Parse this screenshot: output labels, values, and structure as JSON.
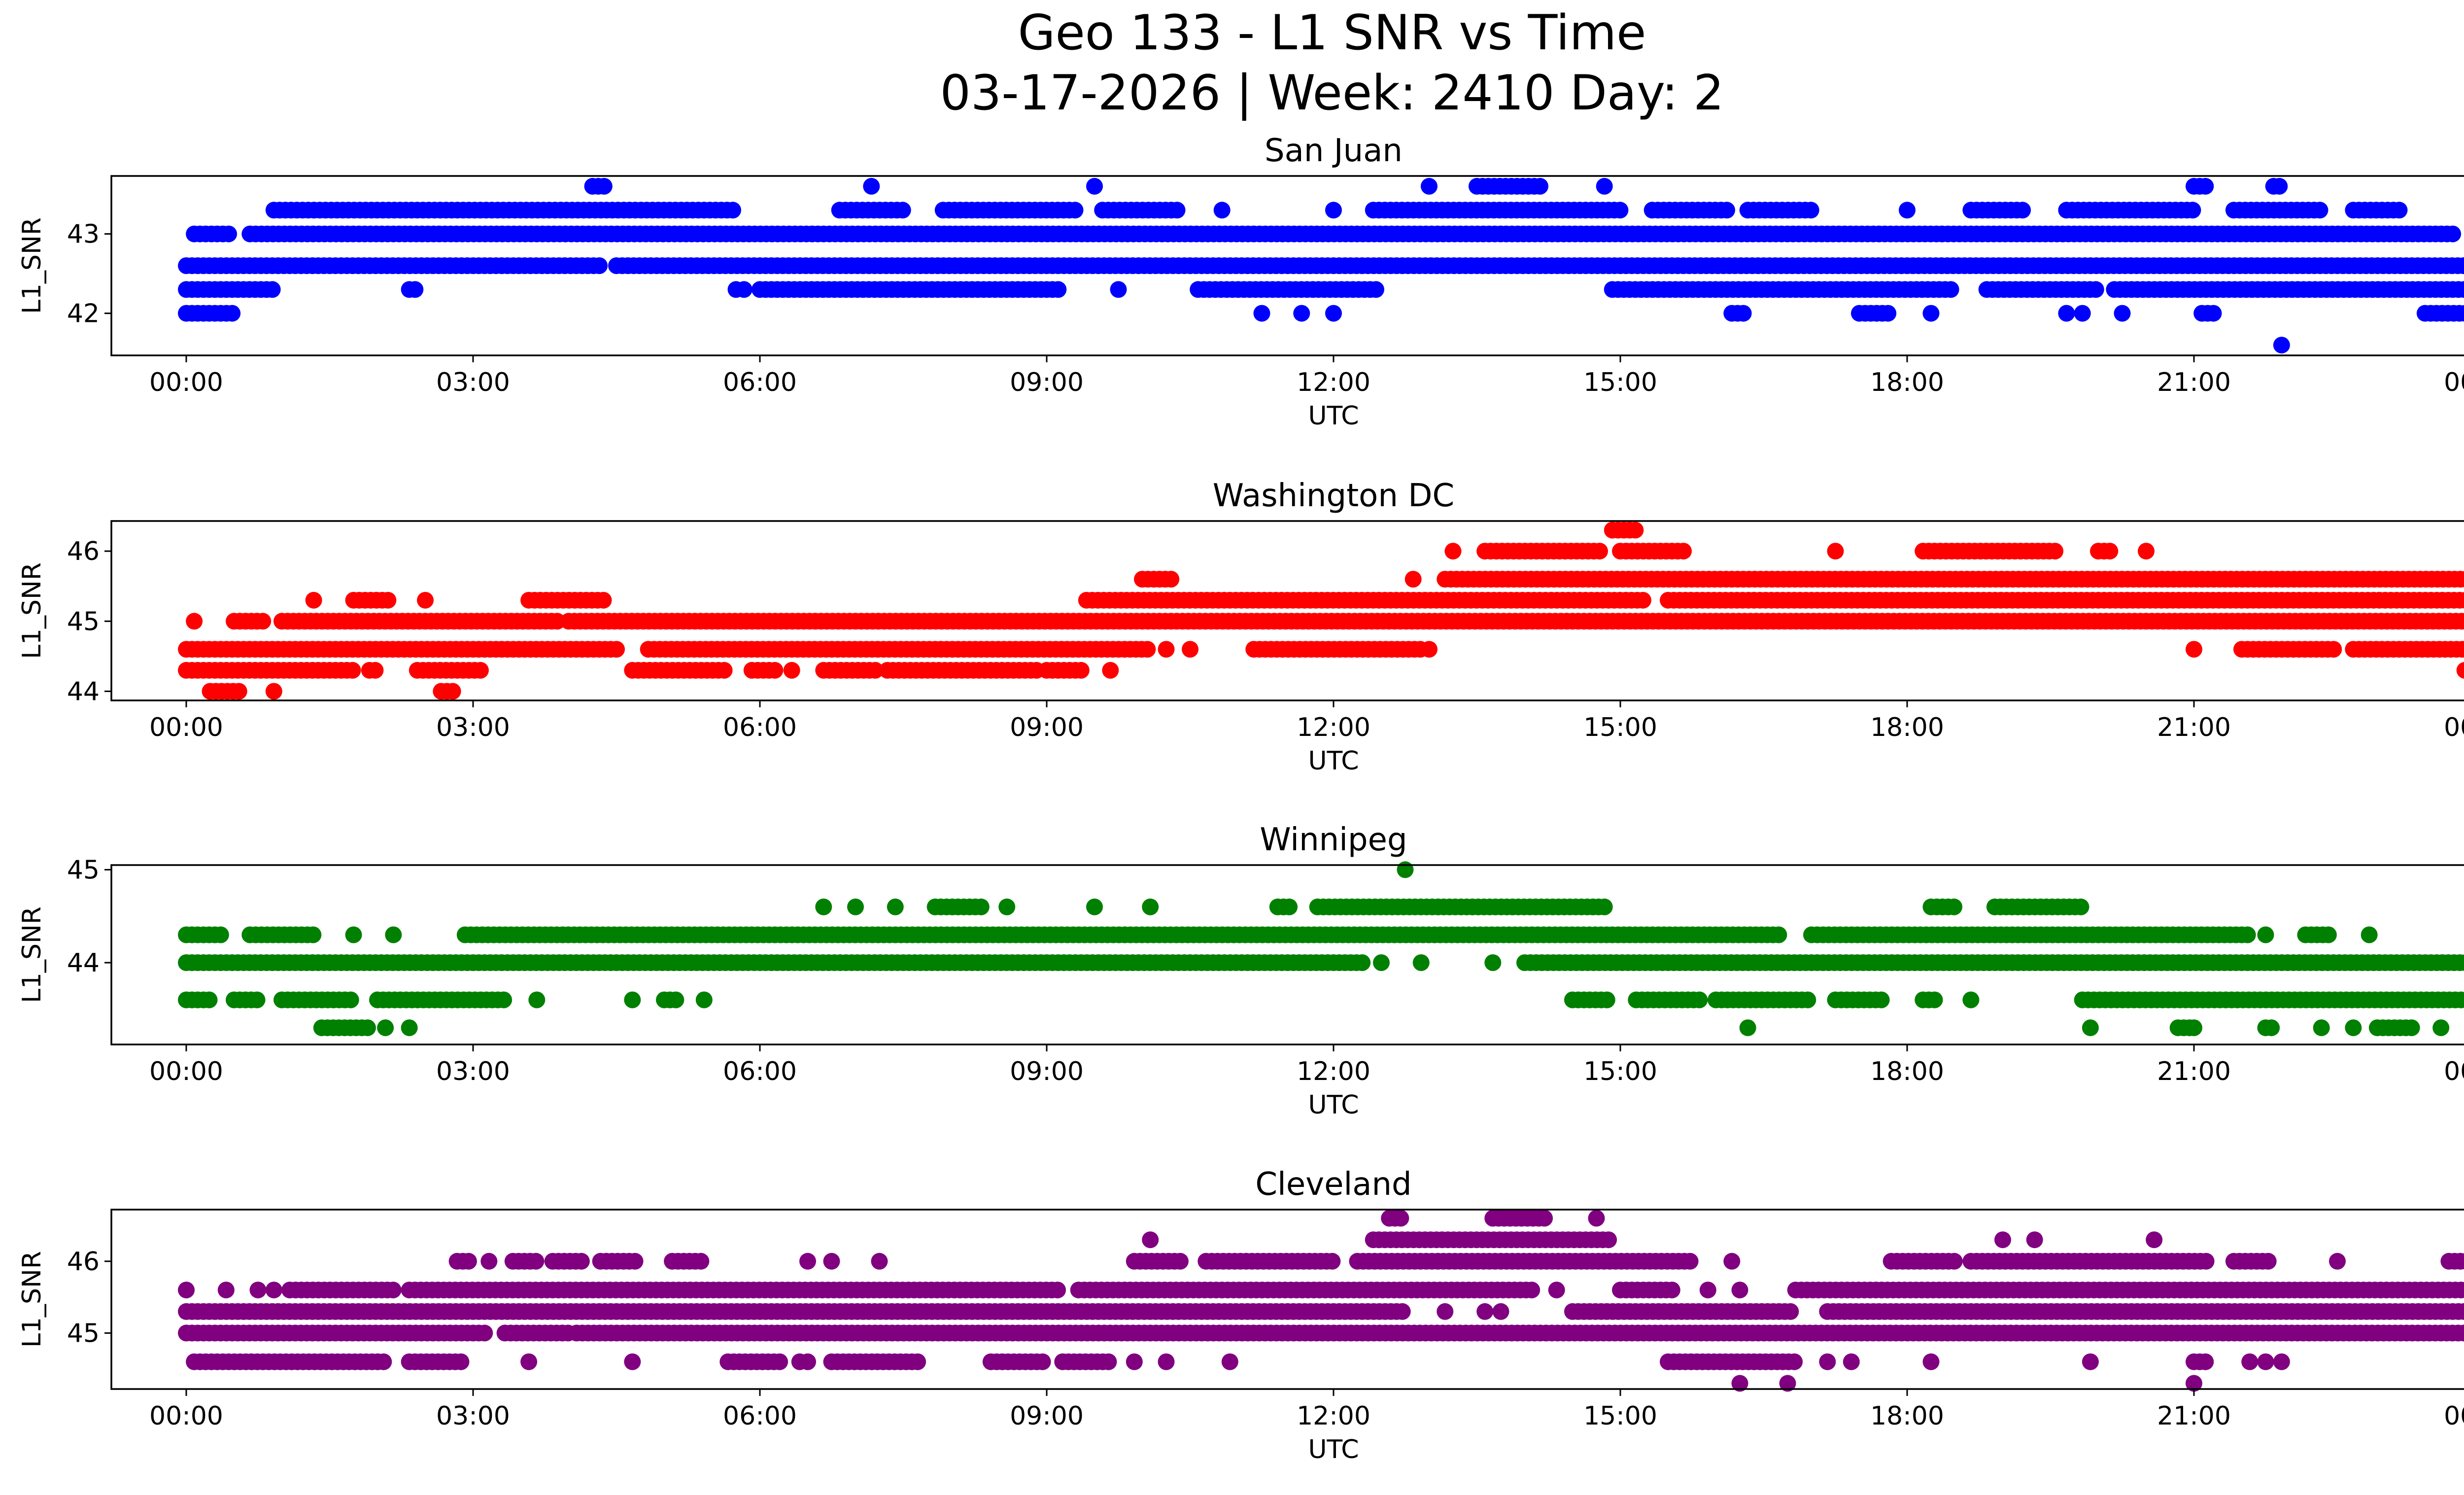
{
  "figure": {
    "title_line1": "Geo 133 - L1 SNR vs Time",
    "title_line2": "03-17-2026 | Week: 2410 Day: 2"
  },
  "chart_data": [
    {
      "type": "scatter",
      "title": "San Juan",
      "xlabel": "UTC",
      "ylabel": "L1_SNR",
      "x_unit": "hours UTC",
      "xlim": [
        "-0:47",
        "24:47"
      ],
      "xticks": [
        "00:00",
        "03:00",
        "06:00",
        "09:00",
        "12:00",
        "15:00",
        "18:00",
        "21:00",
        "00:00"
      ],
      "ylim": [
        41.47,
        43.73
      ],
      "yticks": [
        42,
        43
      ],
      "color": "#0000ff",
      "grid": false,
      "levels": [
        {
          "y": 42.0,
          "points": [
            "0:00-0:30",
            "11:15",
            "11:40",
            "12:00",
            "16:10-16:20",
            "17:30-17:50",
            "18:15",
            "19:40",
            "19:50",
            "20:15",
            "21:05-21:15",
            "23:25-24:00"
          ]
        },
        {
          "y": 42.3,
          "points": [
            "0:00-0:55",
            "2:20-2:25",
            "5:45",
            "5:50",
            "6:00-9:10",
            "9:45",
            "10:35-12:30",
            "14:55-18:30",
            "18:50-20:00",
            "20:10-24:00"
          ]
        },
        {
          "y": 42.6,
          "points": [
            "0:00-4:20",
            "4:30-24:00"
          ]
        },
        {
          "y": 43.0,
          "points": [
            "0:05-0:30",
            "0:40-23:45"
          ]
        },
        {
          "y": 43.3,
          "points": [
            "0:55-5:45",
            "6:50-7:30",
            "7:55-9:20",
            "9:35-10:25",
            "10:50",
            "12:00",
            "12:25-15:00",
            "15:20-16:10",
            "16:20-17:00",
            "18:00",
            "18:40-19:15",
            "19:40-21:00",
            "21:25-22:20",
            "22:40-23:10"
          ]
        },
        {
          "y": 43.6,
          "points": [
            "4:15-4:25",
            "7:10",
            "9:30",
            "13:00",
            "13:30-14:10",
            "14:50",
            "21:00-21:10",
            "21:50-21:55"
          ]
        },
        {
          "y": 41.6,
          "points": [
            "21:55"
          ]
        }
      ]
    },
    {
      "type": "scatter",
      "title": "Washington DC",
      "xlabel": "UTC",
      "ylabel": "L1_SNR",
      "x_unit": "hours UTC",
      "xlim": [
        "-0:47",
        "24:47"
      ],
      "xticks": [
        "00:00",
        "03:00",
        "06:00",
        "09:00",
        "12:00",
        "15:00",
        "18:00",
        "21:00",
        "00:00"
      ],
      "ylim": [
        43.87,
        46.43
      ],
      "yticks": [
        44,
        45,
        46
      ],
      "color": "#ff0000",
      "grid": false,
      "levels": [
        {
          "y": 44.0,
          "points": [
            "0:15-0:35",
            "0:55",
            "2:40-2:50"
          ]
        },
        {
          "y": 44.3,
          "points": [
            "0:00-1:45",
            "1:55-2:00",
            "2:25-3:05",
            "4:40-5:40",
            "5:55-6:10",
            "6:20",
            "6:40-7:15",
            "7:20-8:55",
            "9:00-9:25",
            "9:40",
            "23:50",
            "24:00"
          ]
        },
        {
          "y": 44.6,
          "points": [
            "0:00-4:30",
            "4:50-10:05",
            "10:15",
            "10:30",
            "11:10-12:55",
            "13:00",
            "21:00",
            "21:30-22:30",
            "22:40-24:00"
          ]
        },
        {
          "y": 45.0,
          "points": [
            "0:05",
            "0:30-0:50",
            "1:00-3:55",
            "4:00-24:00"
          ]
        },
        {
          "y": 45.3,
          "points": [
            "1:20",
            "1:45-2:10",
            "2:30",
            "3:35-4:25",
            "9:25-15:15",
            "15:30-24:00"
          ]
        },
        {
          "y": 45.6,
          "points": [
            "10:00-10:20",
            "12:50",
            "13:10-24:00"
          ]
        },
        {
          "y": 46.0,
          "points": [
            "13:15",
            "13:35-14:50",
            "15:00-15:40",
            "17:15",
            "18:10-19:35",
            "20:00-20:10",
            "20:30"
          ]
        },
        {
          "y": 46.3,
          "points": [
            "14:55-15:10"
          ]
        }
      ]
    },
    {
      "type": "scatter",
      "title": "Winnipeg",
      "xlabel": "UTC",
      "ylabel": "L1_SNR",
      "x_unit": "hours UTC",
      "xlim": [
        "-0:47",
        "24:47"
      ],
      "xticks": [
        "00:00",
        "03:00",
        "06:00",
        "09:00",
        "12:00",
        "15:00",
        "18:00",
        "21:00",
        "00:00"
      ],
      "ylim": [
        43.12,
        45.05
      ],
      "yticks": [
        44,
        45
      ],
      "color": "#008000",
      "grid": false,
      "levels": [
        {
          "y": 43.3,
          "points": [
            "1:25-1:55",
            "2:05",
            "2:20",
            "16:20",
            "19:55",
            "20:50-21:00",
            "21:00",
            "21:45-21:50",
            "22:20",
            "22:40",
            "22:55-23:20",
            "23:35",
            "24:00"
          ]
        },
        {
          "y": 43.6,
          "points": [
            "0:00-0:15",
            "0:30-0:45",
            "1:00-1:45",
            "2:00-3:20",
            "3:40",
            "4:40",
            "5:00-5:10",
            "5:25",
            "14:30-14:55",
            "15:10-15:50",
            "16:00-17:00",
            "17:15-17:45",
            "18:10-18:20",
            "18:40",
            "19:50-24:00"
          ]
        },
        {
          "y": 44.0,
          "points": [
            "0:00-12:20",
            "12:30",
            "12:55",
            "13:40",
            "14:00-24:00"
          ]
        },
        {
          "y": 44.3,
          "points": [
            "0:00-0:25",
            "0:40-1:20",
            "1:45",
            "2:10",
            "2:55-16:40",
            "17:00-21:35",
            "21:45",
            "22:10-22:25",
            "22:50"
          ]
        },
        {
          "y": 44.6,
          "points": [
            "6:40",
            "7:00",
            "7:25",
            "7:50-8:20",
            "8:35",
            "9:30",
            "10:05",
            "11:25-11:35",
            "11:50-14:50",
            "18:15-18:30",
            "18:55-19:50"
          ]
        },
        {
          "y": 45.0,
          "points": [
            "12:45"
          ]
        }
      ]
    },
    {
      "type": "scatter",
      "title": "Cleveland",
      "xlabel": "UTC",
      "ylabel": "L1_SNR",
      "x_unit": "hours UTC",
      "xlim": [
        "-0:47",
        "24:47"
      ],
      "xticks": [
        "00:00",
        "03:00",
        "06:00",
        "09:00",
        "12:00",
        "15:00",
        "18:00",
        "21:00",
        "00:00"
      ],
      "ylim": [
        44.22,
        46.72
      ],
      "yticks": [
        45,
        46
      ],
      "color": "#800080",
      "grid": false,
      "levels": [
        {
          "y": 44.3,
          "points": [
            "16:15",
            "16:45",
            "21:00"
          ]
        },
        {
          "y": 44.6,
          "points": [
            "0:05-2:05",
            "2:20-2:55",
            "3:35",
            "4:40",
            "5:40-6:15",
            "6:25",
            "6:30",
            "6:45-7:40",
            "8:25-9:00",
            "9:10-9:40",
            "9:55",
            "10:15",
            "10:55",
            "15:30-16:50",
            "17:10",
            "17:25",
            "18:15",
            "19:55",
            "21:00-21:10",
            "21:35",
            "21:45",
            "21:55"
          ]
        },
        {
          "y": 45.0,
          "points": [
            "0:00-3:10",
            "3:20-4:00",
            "4:05-24:00"
          ]
        },
        {
          "y": 45.3,
          "points": [
            "0:00-12:45",
            "13:10",
            "13:35",
            "13:45",
            "14:30-16:50",
            "17:10-24:00"
          ]
        },
        {
          "y": 45.6,
          "points": [
            "0:00",
            "0:25",
            "0:45",
            "0:55",
            "1:05-2:10",
            "2:20-9:10",
            "9:20-14:05",
            "14:20",
            "15:00-15:35",
            "15:55",
            "16:15",
            "16:50-24:00"
          ]
        },
        {
          "y": 46.0,
          "points": [
            "2:50-3:00",
            "3:10",
            "3:25-3:40",
            "3:50-4:10",
            "4:20-4:45",
            "5:05-5:25",
            "6:30",
            "6:45",
            "7:15",
            "9:55-10:25",
            "10:40-12:00",
            "12:15-15:45",
            "16:10",
            "17:50-18:30",
            "18:40-21:10",
            "21:25-21:50",
            "22:30",
            "23:40-23:55"
          ]
        },
        {
          "y": 46.3,
          "points": [
            "10:05",
            "12:25-14:55",
            "19:00",
            "19:20",
            "20:35"
          ]
        },
        {
          "y": 46.6,
          "points": [
            "12:35-12:45",
            "13:40-14:15",
            "14:45"
          ]
        }
      ]
    }
  ]
}
